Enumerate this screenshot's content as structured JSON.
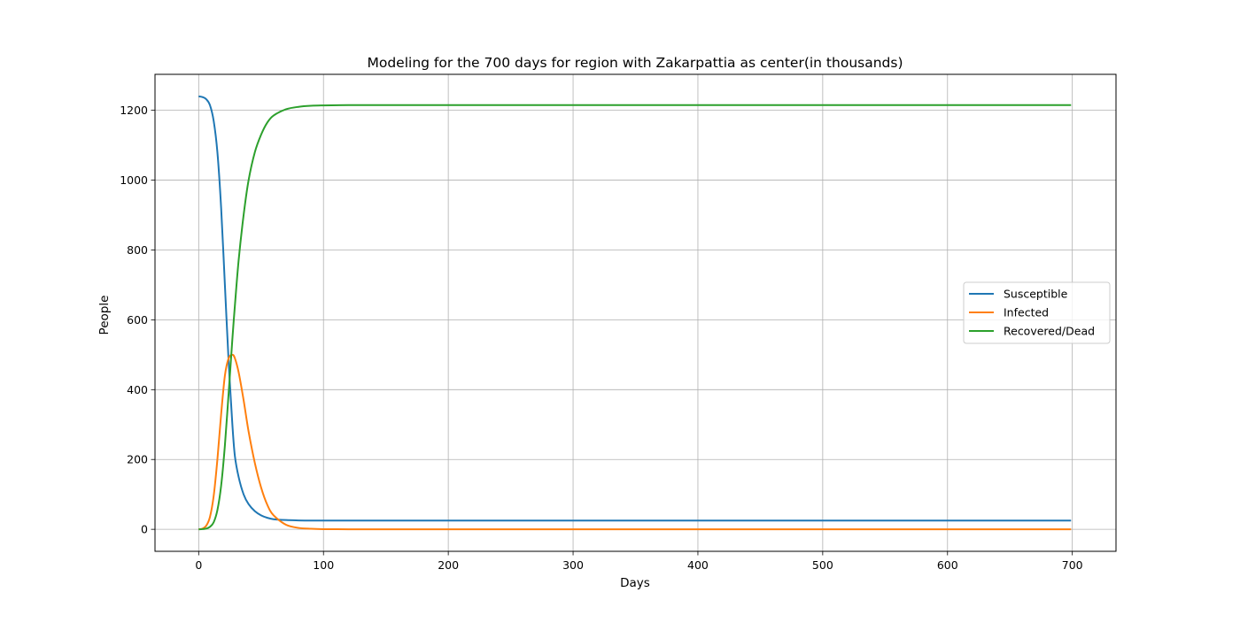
{
  "chart_data": {
    "type": "line",
    "title": "Modeling for the 700 days for region with Zakarpattia as center(in thousands)",
    "xlabel": "Days",
    "ylabel": "People",
    "xlim": [
      -35,
      735
    ],
    "ylim": [
      -63,
      1303
    ],
    "xticks": [
      0,
      100,
      200,
      300,
      400,
      500,
      600,
      700
    ],
    "yticks": [
      0,
      200,
      400,
      600,
      800,
      1000,
      1200
    ],
    "grid": true,
    "legend_position": "center-right",
    "x": [
      0,
      3,
      6,
      9,
      12,
      15,
      18,
      21,
      24,
      27,
      29,
      32,
      36,
      40,
      45,
      50,
      55,
      60,
      70,
      80,
      90,
      100,
      120,
      150,
      200,
      300,
      400,
      500,
      600,
      699
    ],
    "series": [
      {
        "name": "Susceptible",
        "color": "#1f77b4",
        "values": [
          1240,
          1238,
          1232,
          1215,
          1170,
          1080,
          920,
          700,
          480,
          300,
          210,
          150,
          100,
          72,
          52,
          40,
          33,
          29,
          26.5,
          25.5,
          25,
          25,
          25,
          25,
          25,
          25,
          25,
          25,
          25,
          25
        ]
      },
      {
        "name": "Infected",
        "color": "#ff7f0e",
        "values": [
          0,
          2,
          10,
          35,
          95,
          200,
          330,
          440,
          490,
          500,
          490,
          450,
          370,
          280,
          190,
          120,
          70,
          40,
          13,
          4,
          1.5,
          0.5,
          0,
          0,
          0,
          0,
          0,
          0,
          0,
          0
        ]
      },
      {
        "name": "Recovered/Dead",
        "color": "#2ca02c",
        "values": [
          0,
          0.5,
          2,
          7,
          20,
          55,
          125,
          240,
          390,
          545,
          640,
          770,
          900,
          1000,
          1080,
          1130,
          1165,
          1185,
          1203,
          1210,
          1213,
          1214,
          1215,
          1215,
          1215,
          1215,
          1215,
          1215,
          1215,
          1215
        ]
      }
    ]
  }
}
